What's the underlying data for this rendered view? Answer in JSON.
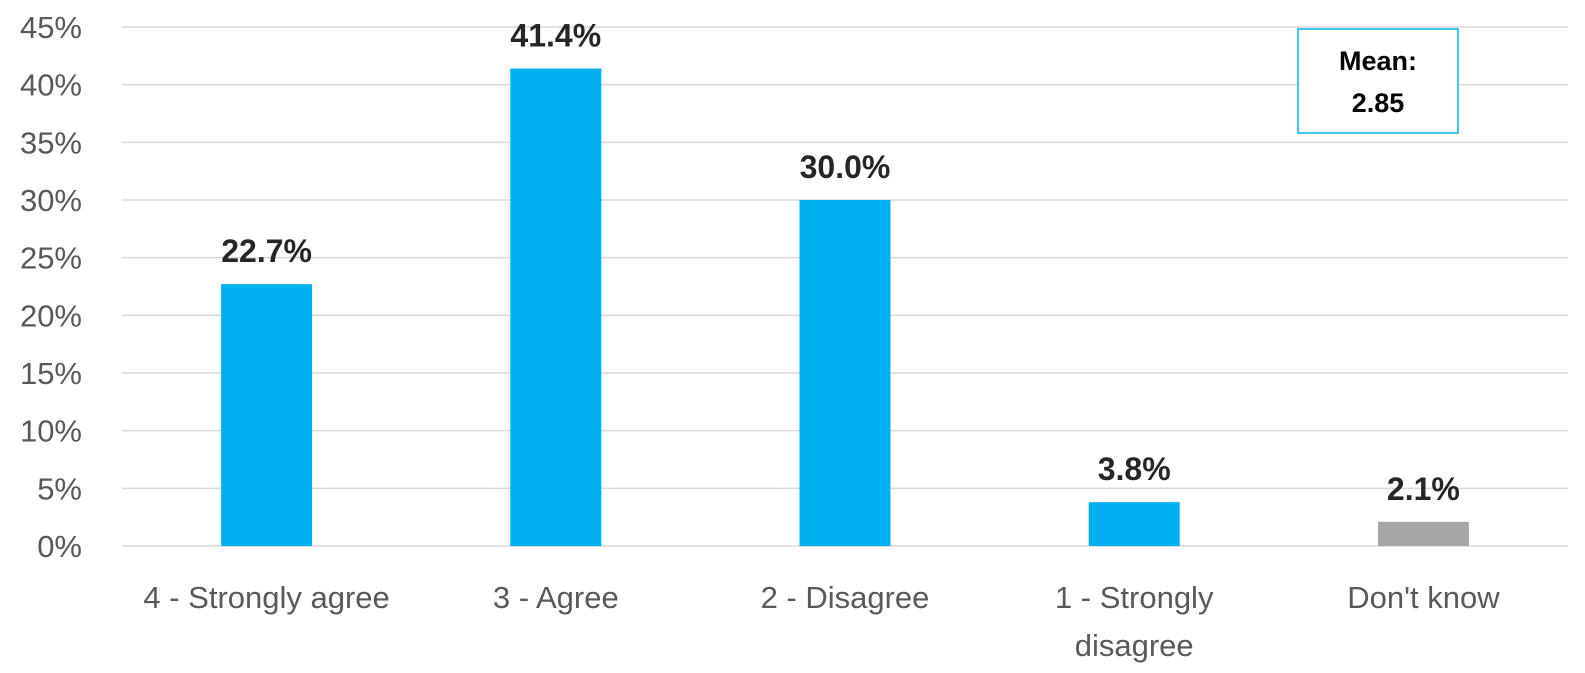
{
  "chart_data": {
    "type": "bar",
    "categories": [
      [
        "4 - Strongly agree"
      ],
      [
        "3 - Agree"
      ],
      [
        "2 - Disagree"
      ],
      [
        "1 - Strongly",
        "disagree"
      ],
      [
        "Don't know"
      ]
    ],
    "values": [
      22.7,
      41.4,
      30.0,
      3.8,
      2.1
    ],
    "data_labels": [
      "22.7%",
      "41.4%",
      "30.0%",
      "3.8%",
      "2.1%"
    ],
    "bar_colors": [
      "#00B0F0",
      "#00B0F0",
      "#00B0F0",
      "#00B0F0",
      "#A6A6A6"
    ],
    "ylim": [
      0,
      45
    ],
    "yticks": [
      0,
      5,
      10,
      15,
      20,
      25,
      30,
      35,
      40,
      45
    ],
    "ytick_labels": [
      "0%",
      "5%",
      "10%",
      "15%",
      "20%",
      "25%",
      "30%",
      "35%",
      "40%",
      "45%"
    ],
    "grid": true,
    "grid_color": "#D9D9D9",
    "title": "",
    "xlabel": "",
    "ylabel": "",
    "annotation": {
      "line1": "Mean:",
      "line2": "2.85",
      "border_color": "#00B0F0",
      "placement": "top-right"
    }
  }
}
